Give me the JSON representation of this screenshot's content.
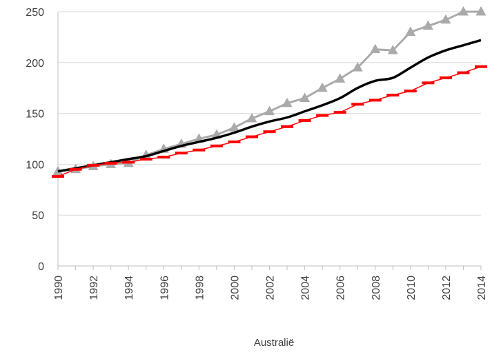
{
  "chart_data": {
    "type": "line",
    "title": "",
    "xlabel": "Australië",
    "ylabel": "",
    "ylim": [
      0,
      250
    ],
    "y_ticks": [
      0,
      50,
      100,
      150,
      200,
      250
    ],
    "x_ticks": [
      "1990",
      "1992",
      "1994",
      "1996",
      "1998",
      "2000",
      "2002",
      "2004",
      "2006",
      "2008",
      "2010",
      "2012",
      "2014"
    ],
    "x": [
      1990,
      1991,
      1992,
      1993,
      1994,
      1995,
      1996,
      1997,
      1998,
      1999,
      2000,
      2001,
      2002,
      2003,
      2004,
      2005,
      2006,
      2007,
      2008,
      2009,
      2010,
      2011,
      2012,
      2013,
      2014
    ],
    "grid": "horizontal",
    "legend": "none",
    "series": [
      {
        "color": "#aaaaaa",
        "marker": "triangle",
        "values": [
          93,
          95,
          98,
          100,
          101,
          109,
          115,
          120,
          125,
          129,
          136,
          145,
          152,
          160,
          165,
          175,
          184,
          195,
          213,
          212,
          230,
          236,
          242,
          250,
          250
        ]
      },
      {
        "color": "#000000",
        "marker": "none",
        "values": [
          93,
          96,
          99,
          102,
          105,
          108,
          113,
          118,
          122,
          126,
          131,
          137,
          142,
          146,
          152,
          158,
          165,
          175,
          182,
          185,
          195,
          205,
          212,
          217,
          222
        ]
      },
      {
        "color": "#ff0000",
        "marker": "dash",
        "values": [
          88,
          95,
          99,
          101,
          102,
          105,
          107,
          111,
          114,
          118,
          122,
          127,
          132,
          137,
          143,
          148,
          151,
          159,
          163,
          168,
          172,
          180,
          185,
          190,
          196
        ]
      }
    ]
  }
}
